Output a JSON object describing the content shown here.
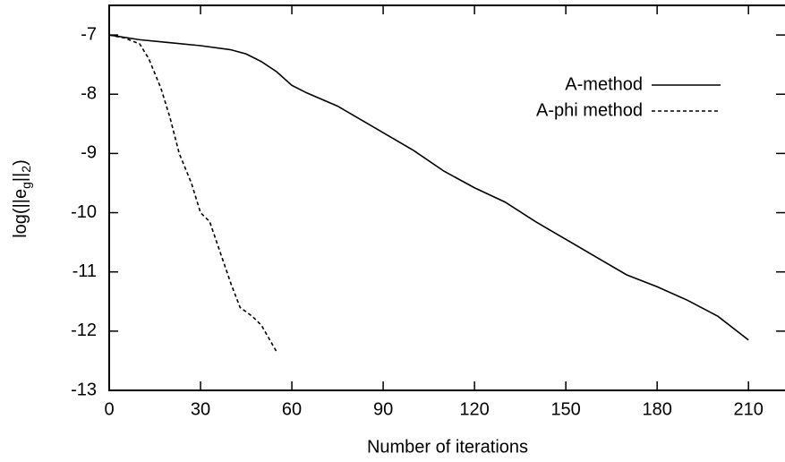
{
  "chart_data": {
    "type": "line",
    "xlabel": "Number of iterations",
    "ylabel": [
      "log(||e",
      "g",
      "||",
      "2",
      ")"
    ],
    "xlim": [
      0,
      222
    ],
    "ylim": [
      -13,
      -6.5
    ],
    "xticks": [
      0,
      30,
      60,
      90,
      120,
      150,
      180,
      210
    ],
    "yticks": [
      -13,
      -12,
      -11,
      -10,
      -9,
      -8,
      -7
    ],
    "legend": "upper right",
    "series": [
      {
        "name": "A-method",
        "color": "#000000",
        "dash": false,
        "x": [
          0,
          10,
          20,
          30,
          40,
          45,
          50,
          55,
          60,
          65,
          75,
          90,
          100,
          110,
          120,
          130,
          140,
          150,
          160,
          170,
          180,
          190,
          200,
          210
        ],
        "values": [
          -7.0,
          -7.08,
          -7.13,
          -7.18,
          -7.25,
          -7.32,
          -7.45,
          -7.62,
          -7.85,
          -7.98,
          -8.2,
          -8.65,
          -8.95,
          -9.3,
          -9.58,
          -9.82,
          -10.15,
          -10.45,
          -10.75,
          -11.05,
          -11.25,
          -11.48,
          -11.75,
          -12.15
        ]
      },
      {
        "name": "A-phi method",
        "color": "#000000",
        "dash": true,
        "x": [
          0,
          5,
          10,
          13,
          17,
          20,
          23,
          27,
          30,
          33,
          36,
          40,
          43,
          47,
          50,
          55
        ],
        "values": [
          -7.0,
          -7.05,
          -7.15,
          -7.4,
          -7.9,
          -8.4,
          -9.0,
          -9.5,
          -10.0,
          -10.15,
          -10.6,
          -11.2,
          -11.6,
          -11.75,
          -11.9,
          -12.35
        ]
      }
    ]
  }
}
